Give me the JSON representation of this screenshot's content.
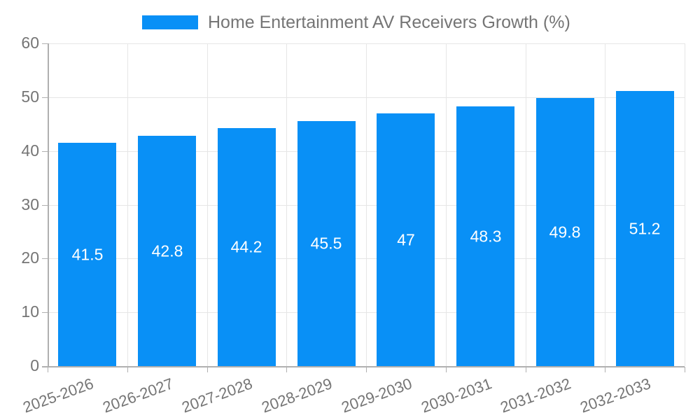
{
  "legend": {
    "label": "Home Entertainment AV Receivers Growth (%)"
  },
  "chart_data": {
    "type": "bar",
    "title": "Home Entertainment AV Receivers Growth (%)",
    "categories": [
      "2025-2026",
      "2026-2027",
      "2027-2028",
      "2028-2029",
      "2029-2030",
      "2030-2031",
      "2031-2032",
      "2032-2033"
    ],
    "values": [
      41.5,
      42.8,
      44.2,
      45.5,
      47,
      48.3,
      49.8,
      51.2
    ],
    "value_labels": [
      "41.5",
      "42.8",
      "44.2",
      "45.5",
      "47",
      "48.3",
      "49.8",
      "51.2"
    ],
    "xlabel": "",
    "ylabel": "",
    "ylim": [
      0,
      60
    ],
    "yticks": [
      0,
      10,
      20,
      30,
      40,
      50,
      60
    ],
    "grid": true,
    "legend_position": "top-center",
    "colors": {
      "bar": "#0990f6",
      "bar_value_text": "#ffffff",
      "axis_text": "#757575",
      "grid_line": "#e6e6e6",
      "axis_line": "#b0b0b0"
    }
  }
}
